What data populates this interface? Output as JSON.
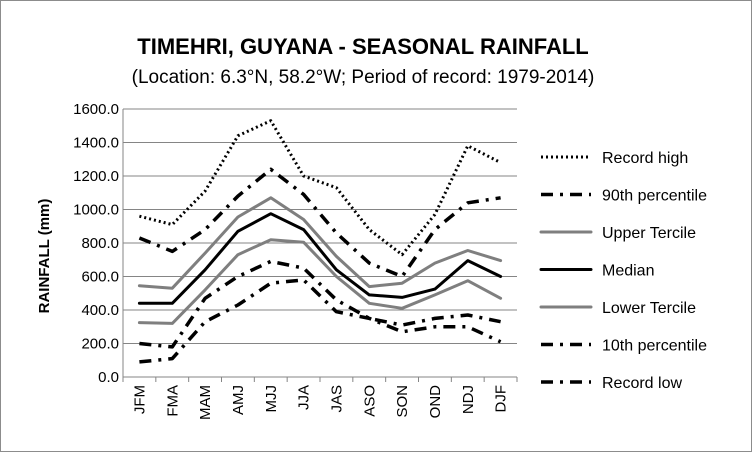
{
  "chart_data": {
    "type": "line",
    "title": "TIMEHRI, GUYANA - SEASONAL RAINFALL",
    "subtitle": "(Location: 6.3°N, 58.2°W; Period of record: 1979-2014)",
    "ylabel": "RAINFALL (mm)",
    "xlabel": "",
    "ylim": [
      0,
      1600
    ],
    "yticks": [
      "0.0",
      "200.0",
      "400.0",
      "600.0",
      "800.0",
      "1000.0",
      "1200.0",
      "1400.0",
      "1600.0"
    ],
    "ytick_values": [
      0,
      200,
      400,
      600,
      800,
      1000,
      1200,
      1400,
      1600
    ],
    "categories": [
      "JFM",
      "FMA",
      "MAM",
      "AMJ",
      "MJJ",
      "JJA",
      "JAS",
      "ASO",
      "SON",
      "OND",
      "NDJ",
      "DJF"
    ],
    "grid": "horizontal",
    "legend_position": "right",
    "series": [
      {
        "name": "Record high",
        "color": "#000000",
        "style": "dotted",
        "values": [
          960,
          910,
          1110,
          1440,
          1530,
          1200,
          1130,
          880,
          730,
          970,
          1380,
          1280
        ]
      },
      {
        "name": "90th percentile",
        "color": "#000000",
        "style": "dashdot",
        "values": [
          830,
          750,
          880,
          1080,
          1240,
          1090,
          860,
          680,
          600,
          880,
          1040,
          1070
        ]
      },
      {
        "name": "Upper Tercile",
        "color": "#7f7f7f",
        "style": "solid",
        "values": [
          545,
          530,
          740,
          955,
          1070,
          940,
          720,
          540,
          560,
          680,
          755,
          695
        ]
      },
      {
        "name": "Median",
        "color": "#000000",
        "style": "solid",
        "values": [
          440,
          440,
          640,
          870,
          975,
          880,
          640,
          490,
          475,
          525,
          695,
          600
        ]
      },
      {
        "name": "Lower Tercile",
        "color": "#7f7f7f",
        "style": "solid",
        "values": [
          325,
          320,
          520,
          730,
          820,
          805,
          600,
          440,
          410,
          490,
          575,
          470
        ]
      },
      {
        "name": "10th percentile",
        "color": "#000000",
        "style": "dashdot",
        "values": [
          200,
          180,
          470,
          600,
          690,
          650,
          460,
          350,
          310,
          350,
          370,
          330
        ]
      },
      {
        "name": "Record low",
        "color": "#000000",
        "style": "dashdot",
        "values": [
          90,
          110,
          330,
          430,
          560,
          580,
          390,
          350,
          270,
          300,
          300,
          210
        ]
      }
    ]
  }
}
